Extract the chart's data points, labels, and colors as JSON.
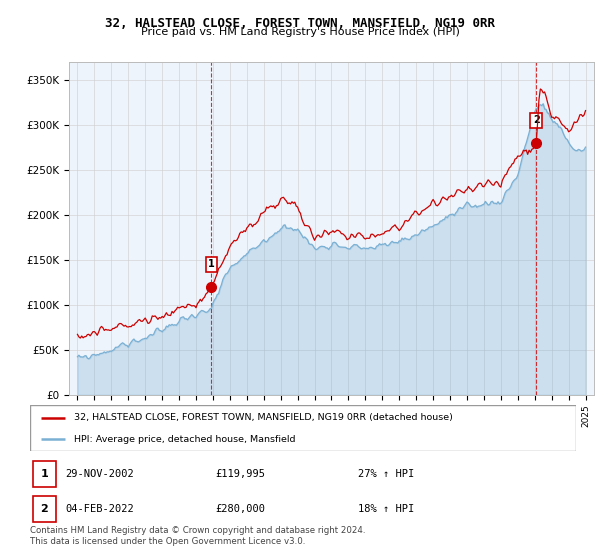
{
  "title": "32, HALSTEAD CLOSE, FOREST TOWN, MANSFIELD, NG19 0RR",
  "subtitle": "Price paid vs. HM Land Registry's House Price Index (HPI)",
  "ylabel_ticks": [
    "£0",
    "£50K",
    "£100K",
    "£150K",
    "£200K",
    "£250K",
    "£300K",
    "£350K"
  ],
  "ytick_values": [
    0,
    50000,
    100000,
    150000,
    200000,
    250000,
    300000,
    350000
  ],
  "ylim": [
    0,
    370000
  ],
  "xlim_start": 1994.5,
  "xlim_end": 2025.5,
  "sale1": {
    "date_num": 2002.91,
    "price": 119995,
    "label": "1"
  },
  "sale2": {
    "date_num": 2022.09,
    "price": 280000,
    "label": "2"
  },
  "house_color": "#cc0000",
  "hpi_color": "#7ab0d4",
  "hpi_fill_color": "#ddeeff",
  "legend_house": "32, HALSTEAD CLOSE, FOREST TOWN, MANSFIELD, NG19 0RR (detached house)",
  "legend_hpi": "HPI: Average price, detached house, Mansfield",
  "footer": "Contains HM Land Registry data © Crown copyright and database right 2024.\nThis data is licensed under the Open Government Licence v3.0.",
  "background_color": "#ffffff",
  "plot_bg_color": "#eef4fb",
  "grid_color": "#cccccc"
}
